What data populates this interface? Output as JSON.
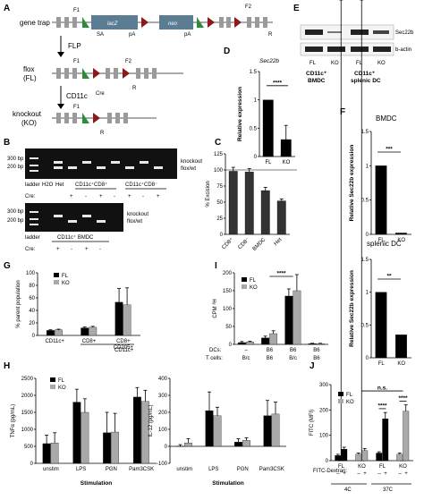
{
  "colors": {
    "fl": "#000000",
    "ko": "#a9a9a9",
    "lacz": "#5b7d94",
    "neo": "#5b7d94",
    "frt": "#2e8b3a",
    "loxp": "#8b1a1a",
    "exon": "#9a9a9a"
  },
  "panel_labels": {
    "a": "A",
    "b": "B",
    "c": "C",
    "d": "D",
    "e": "E",
    "f": "F",
    "g": "G",
    "h": "H",
    "i": "I",
    "j": "J"
  },
  "panelA": {
    "rows": [
      "gene trap",
      "flox\n(FL)",
      "knockout\n(KO)"
    ],
    "row1": "gene trap",
    "row2a": "flox",
    "row2b": "(FL)",
    "row3a": "knockout",
    "row3b": "(KO)",
    "flp": "FLP",
    "cre": "CD11c",
    "cre_sup": "Cre",
    "lacz": "lacZ",
    "neo": "neo",
    "sa": "SA",
    "pa": "pA",
    "pa2": "pA",
    "frt": "FRT",
    "loxp": "loxP",
    "f1": "F1",
    "f2": "F2",
    "r": "R"
  },
  "panelB": {
    "ladder": "ladder",
    "h2o": "H2O",
    "het": "Het",
    "grp1": "CD11c⁺CD8⁺",
    "grp2": "CD11c⁺CD8⁻",
    "grp3": "CD11c⁺ BMDC",
    "bp300": "300 bp",
    "bp200": "200 bp",
    "knockout": "knockout",
    "floxwt": "flox/wt",
    "cre": "Cre:",
    "cre_row1": [
      "",
      "+",
      "-",
      "+",
      "-"
    ],
    "cre_row2": [
      "+",
      "-",
      "+",
      "-"
    ]
  },
  "chart_data": [
    {
      "panel": "C",
      "type": "bar",
      "ylabel": "% Excision",
      "categories": [
        "CD8⁺",
        "CD8⁻",
        "BMDC",
        "Het"
      ],
      "values": [
        98,
        97,
        68,
        52
      ],
      "errors": [
        6,
        5,
        5,
        3
      ],
      "ylim": [
        0,
        125
      ],
      "yticks": [
        0,
        25,
        50,
        75,
        100,
        125
      ]
    },
    {
      "panel": "D",
      "type": "bar",
      "title": "Sec22b",
      "ylabel": "Relative expression",
      "categories": [
        "FL",
        "KO"
      ],
      "values": [
        1.0,
        0.3
      ],
      "errors": [
        0,
        0.25
      ],
      "ylim": [
        0,
        1.5
      ],
      "sig": "****"
    },
    {
      "panel": "F-BMDC",
      "type": "bar",
      "title": "BMDC",
      "ylabel": "Relative Sec22b expression",
      "categories": [
        "FL",
        "KO"
      ],
      "values": [
        1.0,
        0.02
      ],
      "ylim": [
        0,
        1.5
      ],
      "sig": "***"
    },
    {
      "panel": "F-spDC",
      "type": "bar",
      "title": "splenic DC",
      "ylabel": "Relative Sec22b expression",
      "categories": [
        "FL",
        "KO"
      ],
      "values": [
        1.0,
        0.35
      ],
      "ylim": [
        0,
        1.5
      ],
      "sig": "**"
    },
    {
      "panel": "G",
      "type": "bar",
      "ylabel": "% parent population",
      "categories": [
        "CD11c+",
        "CD8+",
        "CD8+\nCD205+"
      ],
      "subgroup": "CD11c+",
      "series": [
        {
          "name": "FL",
          "values": [
            8,
            12,
            53
          ],
          "errors": [
            1,
            1.5,
            22
          ]
        },
        {
          "name": "KO",
          "values": [
            9,
            13,
            49
          ],
          "errors": [
            1,
            1.5,
            27
          ]
        }
      ],
      "ylim": [
        0,
        100
      ],
      "yticks": [
        0,
        20,
        40,
        60,
        80,
        100
      ]
    },
    {
      "panel": "H-TNF",
      "type": "bar",
      "ylabel": "TNFα (pg/mL)",
      "xlabel": "Stimulation",
      "categories": [
        "unstim",
        "LPS",
        "PGN",
        "Pam3CSK"
      ],
      "series": [
        {
          "name": "FL",
          "values": [
            580,
            1800,
            900,
            1950
          ],
          "errors": [
            250,
            380,
            600,
            280
          ]
        },
        {
          "name": "KO",
          "values": [
            600,
            1500,
            920,
            1820
          ],
          "errors": [
            300,
            400,
            550,
            330
          ]
        }
      ],
      "ylim": [
        0,
        2500
      ],
      "yticks": [
        0,
        500,
        1000,
        1500,
        2000,
        2500
      ]
    },
    {
      "panel": "H-IL12",
      "type": "bar",
      "ylabel": "IL-12 (pg/mL)",
      "xlabel": "Stimulation",
      "categories": [
        "unstim",
        "LPS",
        "PGN",
        "Pam3CSK"
      ],
      "series": [
        {
          "name": "FL",
          "values": [
            0,
            210,
            25,
            180
          ],
          "errors": [
            10,
            110,
            20,
            90
          ]
        },
        {
          "name": "KO",
          "values": [
            20,
            180,
            35,
            190
          ],
          "errors": [
            25,
            50,
            15,
            70
          ]
        }
      ],
      "ylim": [
        -100,
        400
      ],
      "yticks": [
        -100,
        0,
        100,
        200,
        300,
        400
      ]
    },
    {
      "panel": "I",
      "type": "bar",
      "ylabel": "CPM ³H",
      "categories": [
        "–",
        "B6",
        "B6",
        "B6"
      ],
      "dcs_label": "DCs:",
      "tcells_label": "T cells:",
      "tcells": [
        "B/c",
        "B6",
        "B/c",
        "B6"
      ],
      "series": [
        {
          "name": "FL",
          "values": [
            5,
            18,
            135,
            2
          ],
          "errors": [
            3,
            5,
            20,
            1
          ]
        },
        {
          "name": "KO",
          "values": [
            7,
            30,
            150,
            2
          ],
          "errors": [
            2,
            8,
            45,
            1
          ]
        }
      ],
      "ylim": [
        0,
        200
      ],
      "yticks": [
        0,
        50,
        100,
        150,
        200
      ],
      "sig": "****"
    },
    {
      "panel": "J",
      "type": "bar",
      "ylabel": "FITC (MFI)",
      "categories": [
        "4C-FL",
        "4C-KO",
        "37C-FL",
        "37C-KO"
      ],
      "groups": [
        "4C",
        "37C"
      ],
      "fitc_label": "FITC-Dextran:",
      "series": [
        {
          "name": "FITC- ",
          "values": [
            20,
            25,
            30,
            25
          ]
        },
        {
          "name": "FITC+",
          "values": [
            45,
            40,
            165,
            195
          ]
        }
      ],
      "errors": [
        [
          5,
          5,
          5,
          5
        ],
        [
          8,
          8,
          25,
          25
        ]
      ],
      "ylim": [
        0,
        300
      ],
      "yticks": [
        0,
        100,
        200,
        300
      ],
      "sig": [
        "****",
        "****",
        "n.s."
      ]
    }
  ],
  "panelE": {
    "sec22b": "Sec22b",
    "bactin": "b-actin",
    "lanes": [
      "FL",
      "KO",
      "FL",
      "KO"
    ],
    "grp1a": "CD11c⁺",
    "grp1b": "BMDC",
    "grp2a": "CD11c⁺",
    "grp2b": "splenic DC"
  },
  "legend": {
    "fl": "FL",
    "ko": "KO"
  },
  "misc": {
    "dcs": "DCs:",
    "tcells": "T cells:",
    "fitc": "FITC-Dextran:",
    "minus": "–",
    "plus": "+",
    "t4c": "4C",
    "t37c": "37C",
    "ns": "n.s.",
    "cd11c": "CD11c+"
  }
}
